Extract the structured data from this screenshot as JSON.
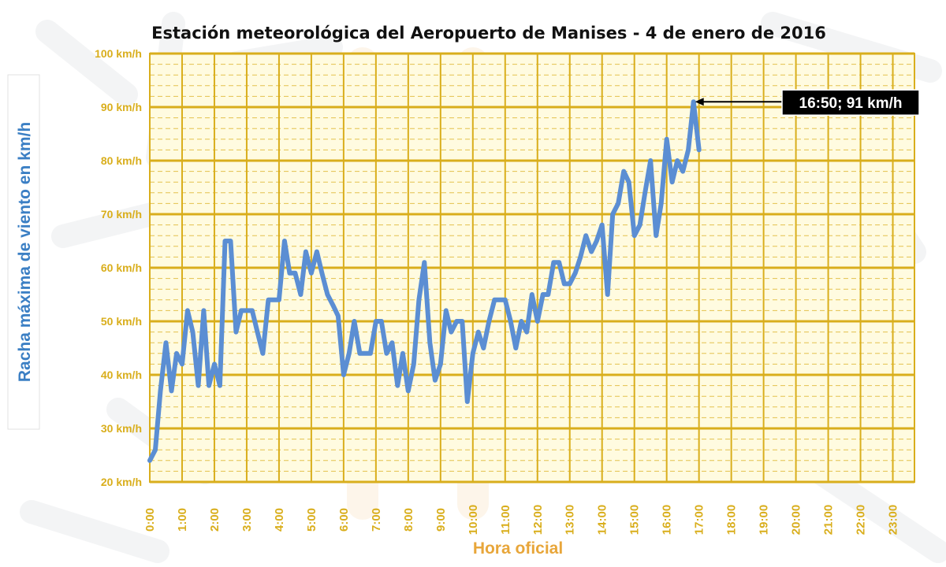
{
  "colors": {
    "grid": "#d9ae1c",
    "tick_text": "#d9ae1c",
    "line": "#5b8ed3",
    "ylabel": "#3b7fc4",
    "xlabel": "#e8a63a",
    "plot_bg": "#fffbe0"
  },
  "chart_data": {
    "type": "line",
    "title": "Estación meteorológica del Aeropuerto de Manises - 4 de enero de 2016",
    "xlabel": "Hora oficial",
    "ylabel": "Racha máxima de viento en km/h",
    "ylim": [
      20,
      100
    ],
    "xlim": [
      0,
      23.67
    ],
    "grid": true,
    "yticks": [
      {
        "value": 20,
        "label": "20 km/h"
      },
      {
        "value": 30,
        "label": "30 km/h"
      },
      {
        "value": 40,
        "label": "40 km/h"
      },
      {
        "value": 50,
        "label": "50 km/h"
      },
      {
        "value": 60,
        "label": "60 km/h"
      },
      {
        "value": 70,
        "label": "70 km/h"
      },
      {
        "value": 80,
        "label": "80 km/h"
      },
      {
        "value": 90,
        "label": "90 km/h"
      },
      {
        "value": 100,
        "label": "100 km/h"
      }
    ],
    "xticks": [
      {
        "value": 0,
        "label": "0:00"
      },
      {
        "value": 1,
        "label": "1:00"
      },
      {
        "value": 2,
        "label": "2:00"
      },
      {
        "value": 3,
        "label": "3:00"
      },
      {
        "value": 4,
        "label": "4:00"
      },
      {
        "value": 5,
        "label": "5:00"
      },
      {
        "value": 6,
        "label": "6:00"
      },
      {
        "value": 7,
        "label": "7:00"
      },
      {
        "value": 8,
        "label": "8:00"
      },
      {
        "value": 9,
        "label": "9:00"
      },
      {
        "value": 10,
        "label": "10:00"
      },
      {
        "value": 11,
        "label": "11:00"
      },
      {
        "value": 12,
        "label": "12:00"
      },
      {
        "value": 13,
        "label": "13:00"
      },
      {
        "value": 14,
        "label": "14:00"
      },
      {
        "value": 15,
        "label": "15:00"
      },
      {
        "value": 16,
        "label": "16:00"
      },
      {
        "value": 17,
        "label": "17:00"
      },
      {
        "value": 18,
        "label": "18:00"
      },
      {
        "value": 19,
        "label": "19:00"
      },
      {
        "value": 20,
        "label": "20:00"
      },
      {
        "value": 21,
        "label": "21:00"
      },
      {
        "value": 22,
        "label": "22:00"
      },
      {
        "value": 23,
        "label": "23:00"
      }
    ],
    "series": [
      {
        "name": "Racha máxima",
        "x": [
          0,
          0.17,
          0.33,
          0.5,
          0.67,
          0.83,
          1.0,
          1.17,
          1.33,
          1.5,
          1.67,
          1.83,
          2.0,
          2.17,
          2.33,
          2.5,
          2.67,
          2.83,
          3.0,
          3.17,
          3.33,
          3.5,
          3.67,
          3.83,
          4.0,
          4.17,
          4.33,
          4.5,
          4.67,
          4.83,
          5.0,
          5.17,
          5.33,
          5.5,
          5.67,
          5.83,
          6.0,
          6.17,
          6.33,
          6.5,
          6.67,
          6.83,
          7.0,
          7.17,
          7.33,
          7.5,
          7.67,
          7.83,
          8.0,
          8.17,
          8.33,
          8.5,
          8.67,
          8.83,
          9.0,
          9.17,
          9.33,
          9.5,
          9.67,
          9.83,
          10.0,
          10.17,
          10.33,
          10.5,
          10.67,
          10.83,
          11.0,
          11.17,
          11.33,
          11.5,
          11.67,
          11.83,
          12.0,
          12.17,
          12.33,
          12.5,
          12.67,
          12.83,
          13.0,
          13.17,
          13.33,
          13.5,
          13.67,
          13.83,
          14.0,
          14.17,
          14.33,
          14.5,
          14.67,
          14.83,
          15.0,
          15.17,
          15.33,
          15.5,
          15.67,
          15.83,
          16.0,
          16.17,
          16.33,
          16.5,
          16.67,
          16.83,
          17.0
        ],
        "y": [
          24,
          26,
          37,
          46,
          37,
          44,
          42,
          52,
          48,
          38,
          52,
          38,
          42,
          38,
          65,
          65,
          48,
          52,
          52,
          52,
          48,
          44,
          54,
          54,
          54,
          65,
          59,
          59,
          55,
          63,
          59,
          63,
          59,
          55,
          53,
          51,
          40,
          44,
          50,
          44,
          44,
          44,
          50,
          50,
          44,
          46,
          38,
          44,
          37,
          42,
          54,
          61,
          46,
          39,
          42,
          52,
          48,
          50,
          50,
          35,
          44,
          48,
          45,
          50,
          54,
          54,
          54,
          50,
          45,
          50,
          48,
          55,
          50,
          55,
          55,
          61,
          61,
          57,
          57,
          59,
          62,
          66,
          63,
          65,
          68,
          55,
          70,
          72,
          78,
          76,
          66,
          68,
          74,
          80,
          66,
          72,
          84,
          76,
          80,
          78,
          82,
          91,
          82
        ]
      }
    ],
    "annotation": {
      "text": "16:50; 91 km/h",
      "x": 16.83,
      "y": 91
    }
  }
}
